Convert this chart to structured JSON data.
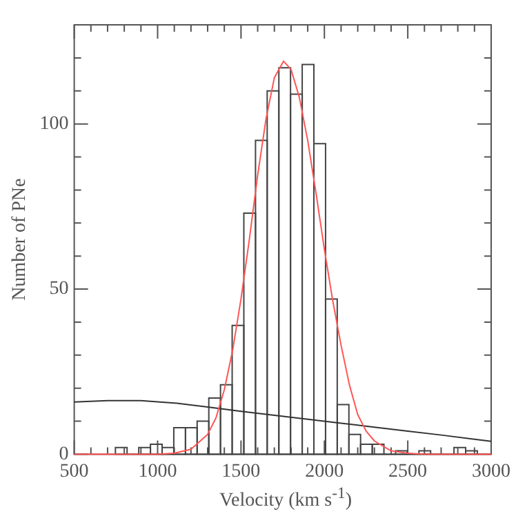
{
  "chart_data": {
    "type": "histogram",
    "xlabel": "Velocity (km s$^{-1}$)",
    "ylabel": "Number of PNe",
    "bins": [
      747,
      817,
      887,
      957,
      1027,
      1097,
      1167,
      1237,
      1307,
      1377,
      1447,
      1517,
      1587,
      1657,
      1727,
      1797,
      1867,
      1937,
      2007,
      2077,
      2147,
      2217,
      2287,
      2357,
      2427,
      2497,
      2567,
      2637,
      2707,
      2777,
      2847,
      2917
    ],
    "values": [
      2,
      0,
      2,
      3,
      2,
      8,
      8,
      10,
      17,
      21,
      39,
      73,
      95,
      110,
      117,
      109,
      118,
      94,
      47,
      15,
      6,
      3,
      3,
      0,
      1,
      0,
      1,
      0,
      0,
      2,
      1
    ],
    "color": "#444444",
    "series": [
      {
        "type": "line",
        "color": "#ff5555",
        "x": [
          500,
          1000,
          1100,
          1200,
          1300,
          1350,
          1400,
          1450,
          1500,
          1550,
          1600,
          1650,
          1700,
          1755,
          1800,
          1850,
          1900,
          1950,
          2000,
          2050,
          2100,
          2150,
          2200,
          2250,
          2300,
          2400,
          2500,
          2600,
          3000
        ],
        "values": [
          0,
          0,
          0.3,
          1.5,
          6,
          11,
          19.5,
          31.5,
          47,
          65,
          84.5,
          101.5,
          114,
          119,
          116.5,
          108,
          95,
          79,
          62,
          46.5,
          33,
          21,
          12,
          7,
          4,
          1,
          0.3,
          0,
          0
        ]
      },
      {
        "type": "line",
        "color": "#333333",
        "x": [
          500,
          700,
          900,
          1100,
          1300,
          1500,
          1700,
          1900,
          2100,
          2300,
          2500,
          2700,
          2900,
          3000
        ],
        "values": [
          15.8,
          16.2,
          16.2,
          15.5,
          14.3,
          13,
          11.8,
          10.6,
          9.4,
          8.2,
          7,
          5.8,
          4.5,
          3.9
        ]
      }
    ],
    "xlim": [
      500,
      3000
    ],
    "ylim": [
      0,
      130
    ],
    "xticks": [
      500,
      {
        "value": 600,
        "label": null
      },
      {
        "value": 700,
        "label": null
      },
      {
        "value": 800,
        "label": null
      },
      {
        "value": 900,
        "label": null
      },
      1000,
      {
        "value": 1100,
        "label": null
      },
      {
        "value": 1200,
        "label": null
      },
      {
        "value": 1300,
        "label": null
      },
      {
        "value": 1400,
        "label": null
      },
      1500,
      {
        "value": 1600,
        "label": null
      },
      {
        "value": 1700,
        "label": null
      },
      {
        "value": 1800,
        "label": null
      },
      {
        "value": 1900,
        "label": null
      },
      2000,
      {
        "value": 2100,
        "label": null
      },
      {
        "value": 2200,
        "label": null
      },
      {
        "value": 2300,
        "label": null
      },
      {
        "value": 2400,
        "label": null
      },
      2500,
      {
        "value": 2600,
        "label": null
      },
      {
        "value": 2700,
        "label": null
      },
      {
        "value": 2800,
        "label": null
      },
      {
        "value": 2900,
        "label": null
      },
      3000
    ],
    "yticks": [
      0,
      {
        "value": 10,
        "label": null
      },
      {
        "value": 20,
        "label": null
      },
      {
        "value": 30,
        "label": null
      },
      {
        "value": 40,
        "label": null
      },
      50,
      {
        "value": 60,
        "label": null
      },
      {
        "value": 70,
        "label": null
      },
      {
        "value": 80,
        "label": null
      },
      {
        "value": 90,
        "label": null
      },
      100,
      {
        "value": 110,
        "label": null
      },
      {
        "value": 120,
        "label": null
      }
    ],
    "grid": false,
    "legend": false,
    "marker": "none",
    "line_style": "solid"
  }
}
